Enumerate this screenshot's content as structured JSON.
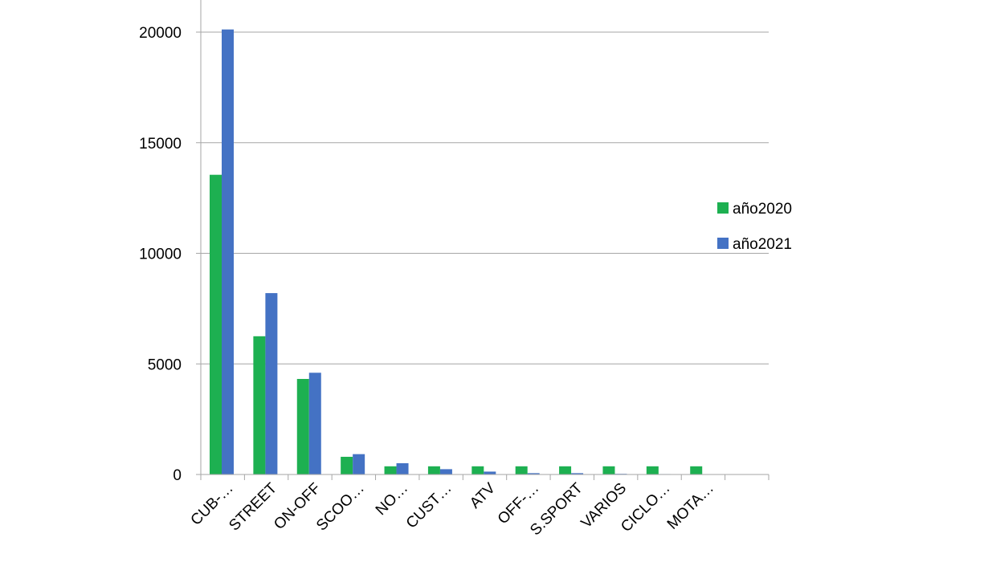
{
  "chart_data": {
    "type": "bar",
    "categories": [
      "CUB-…",
      "STREET",
      "ON-OFF",
      "SCOO…",
      "NO…",
      "CUST…",
      "ATV",
      "OFF-…",
      "S.SPORT",
      "VARIOS",
      "CICLO…",
      "MOTA…",
      ""
    ],
    "series": [
      {
        "name": "año2020",
        "color": "#1db051",
        "values": [
          13550,
          6250,
          4320,
          800,
          370,
          370,
          370,
          370,
          370,
          370,
          370,
          370,
          null
        ]
      },
      {
        "name": "año2021",
        "color": "#4472c4",
        "values": [
          20120,
          8200,
          4600,
          920,
          510,
          240,
          130,
          60,
          60,
          30,
          20,
          10,
          null
        ]
      }
    ],
    "ylim": [
      0,
      20000
    ],
    "yticks": [
      0,
      5000,
      10000,
      15000,
      20000
    ],
    "grid": true,
    "legend_position": "right",
    "title": "",
    "xlabel": "",
    "ylabel": ""
  }
}
